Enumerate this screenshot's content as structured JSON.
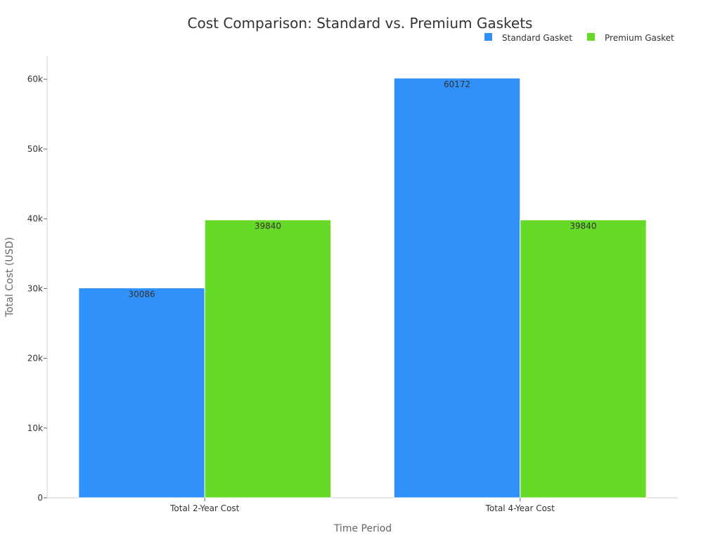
{
  "chart_data": {
    "type": "bar",
    "title": "Cost Comparison: Standard vs. Premium Gaskets",
    "xlabel": "Time Period",
    "ylabel": "Total Cost (USD)",
    "categories": [
      "Total 2-Year Cost",
      "Total 4-Year Cost"
    ],
    "series": [
      {
        "name": "Standard Gasket",
        "color": "#3091f8",
        "values": [
          30086,
          60172
        ]
      },
      {
        "name": "Premium Gasket",
        "color": "#66da26",
        "values": [
          39840,
          39840
        ]
      }
    ],
    "ylim": [
      0,
      63300
    ],
    "yticks": [
      0,
      10000,
      20000,
      30000,
      40000,
      50000,
      60000
    ],
    "ytick_labels": [
      "0",
      "10k",
      "20k",
      "30k",
      "40k",
      "50k",
      "60k"
    ],
    "grid": false,
    "legend_position": "top-right",
    "data_labels": true
  }
}
